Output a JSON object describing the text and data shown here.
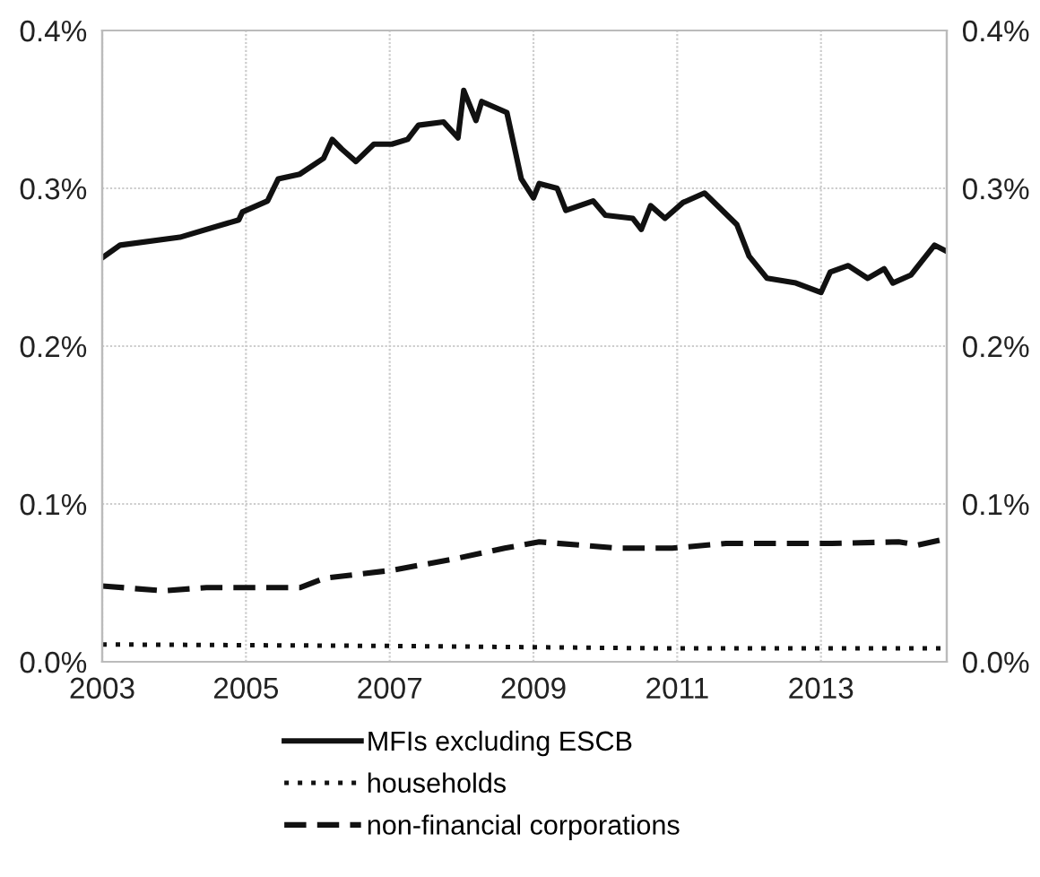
{
  "chart_data": {
    "type": "line",
    "xlim": [
      2003,
      2014.75
    ],
    "xticks": [
      2003,
      2005,
      2007,
      2009,
      2011,
      2013
    ],
    "ylim": [
      0,
      0.4
    ],
    "yticks": [
      {
        "value": 0,
        "label": "0.0%"
      },
      {
        "value": 0.1,
        "label": "0.1%"
      },
      {
        "value": 0.2,
        "label": "0.2%"
      },
      {
        "value": 0.3,
        "label": "0.3%"
      },
      {
        "value": 0.4,
        "label": "0.4%"
      }
    ],
    "y2lim": [
      0,
      0.4
    ],
    "y2ticks": [
      {
        "value": 0,
        "label": "0.0%"
      },
      {
        "value": 0.1,
        "label": "0.1%"
      },
      {
        "value": 0.2,
        "label": "0.2%"
      },
      {
        "value": 0.3,
        "label": "0.3%"
      },
      {
        "value": 0.4,
        "label": "0.4%"
      }
    ],
    "grid": true,
    "legend": "bottom",
    "series": [
      {
        "name": "MFIs excluding ESCB",
        "color": "#111111",
        "line_style": "solid",
        "x": [
          2003.0,
          2003.25,
          2004.08,
          2004.9,
          2004.95,
          2005.3,
          2005.45,
          2005.75,
          2006.08,
          2006.2,
          2006.33,
          2006.53,
          2006.78,
          2007.03,
          2007.25,
          2007.4,
          2007.75,
          2007.95,
          2008.03,
          2008.2,
          2008.28,
          2008.63,
          2008.83,
          2009.0,
          2009.08,
          2009.33,
          2009.45,
          2009.83,
          2010.0,
          2010.38,
          2010.5,
          2010.63,
          2010.83,
          2011.08,
          2011.38,
          2011.83,
          2012.0,
          2012.25,
          2012.65,
          2013.0,
          2013.13,
          2013.38,
          2013.65,
          2013.88,
          2014.0,
          2014.25,
          2014.58,
          2014.75
        ],
        "values": [
          0.256,
          0.264,
          0.269,
          0.28,
          0.285,
          0.292,
          0.306,
          0.309,
          0.319,
          0.331,
          0.325,
          0.317,
          0.328,
          0.328,
          0.331,
          0.34,
          0.342,
          0.332,
          0.362,
          0.343,
          0.355,
          0.348,
          0.306,
          0.294,
          0.303,
          0.3,
          0.286,
          0.292,
          0.283,
          0.281,
          0.274,
          0.289,
          0.281,
          0.291,
          0.297,
          0.277,
          0.257,
          0.243,
          0.24,
          0.234,
          0.247,
          0.251,
          0.243,
          0.249,
          0.24,
          0.245,
          0.264,
          0.26
        ]
      },
      {
        "name": "households",
        "color": "#111111",
        "line_style": "dotted",
        "x": [
          2003.0,
          2007.1,
          2010.85,
          2014.75
        ],
        "values": [
          0.011,
          0.01,
          0.0085,
          0.0085
        ]
      },
      {
        "name": "non-financial corporations",
        "color": "#111111",
        "line_style": "dashed",
        "x": [
          2003.0,
          2003.85,
          2004.45,
          2005.75,
          2006.1,
          2007.03,
          2007.88,
          2008.6,
          2009.08,
          2010.18,
          2010.93,
          2011.68,
          2013.15,
          2014.08,
          2014.35,
          2014.75
        ],
        "values": [
          0.048,
          0.045,
          0.047,
          0.047,
          0.053,
          0.058,
          0.065,
          0.072,
          0.076,
          0.072,
          0.072,
          0.075,
          0.075,
          0.076,
          0.074,
          0.078
        ]
      }
    ]
  }
}
